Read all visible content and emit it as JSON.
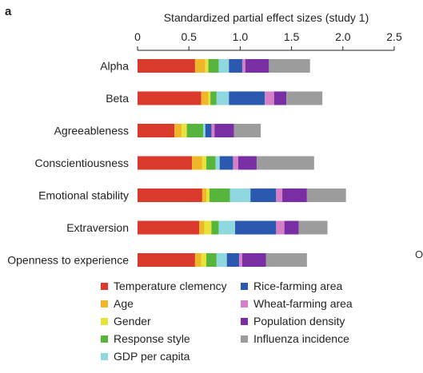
{
  "panel_letter": "a",
  "edge_text": "O",
  "chart_data": {
    "type": "bar",
    "orientation": "horizontal",
    "stacked": true,
    "title": "Standardized partial effect sizes (study 1)",
    "xlabel": "",
    "ylabel": "",
    "xlim": [
      0,
      2.5
    ],
    "xticks": [
      "0",
      "0.5",
      "1.0",
      "1.5",
      "2.0",
      "2.5"
    ],
    "xtick_values": [
      0,
      0.5,
      1.0,
      1.5,
      2.0,
      2.5
    ],
    "axis_position": "top",
    "grid": false,
    "legend_position": "bottom",
    "categories": [
      "Alpha",
      "Beta",
      "Agreeableness",
      "Conscientiousness",
      "Emotional stability",
      "Extraversion",
      "Openness to experience"
    ],
    "series": [
      {
        "name": "Temperature clemency",
        "color": "#d93a2b",
        "values": [
          0.56,
          0.62,
          0.36,
          0.53,
          0.63,
          0.6,
          0.56
        ]
      },
      {
        "name": "Age",
        "color": "#f0b629",
        "values": [
          0.1,
          0.07,
          0.07,
          0.1,
          0.04,
          0.05,
          0.06
        ]
      },
      {
        "name": "Gender",
        "color": "#e8e33a",
        "values": [
          0.03,
          0.02,
          0.05,
          0.04,
          0.03,
          0.07,
          0.05
        ]
      },
      {
        "name": "Response style",
        "color": "#56b53a",
        "values": [
          0.1,
          0.06,
          0.16,
          0.09,
          0.2,
          0.07,
          0.1
        ]
      },
      {
        "name": "GDP per capita",
        "color": "#8fd8e0",
        "values": [
          0.1,
          0.12,
          0.02,
          0.04,
          0.2,
          0.16,
          0.1
        ]
      },
      {
        "name": "Rice-farming area",
        "color": "#2b59b0",
        "values": [
          0.13,
          0.35,
          0.06,
          0.13,
          0.25,
          0.4,
          0.12
        ]
      },
      {
        "name": "Wheat-farming area",
        "color": "#d77fc6",
        "values": [
          0.03,
          0.09,
          0.03,
          0.05,
          0.06,
          0.08,
          0.03
        ]
      },
      {
        "name": "Population density",
        "color": "#7a2ea4",
        "values": [
          0.23,
          0.12,
          0.19,
          0.18,
          0.24,
          0.14,
          0.23
        ]
      },
      {
        "name": "Influenza incidence",
        "color": "#9c9c9c",
        "values": [
          0.4,
          0.35,
          0.26,
          0.56,
          0.38,
          0.28,
          0.4
        ]
      }
    ]
  }
}
